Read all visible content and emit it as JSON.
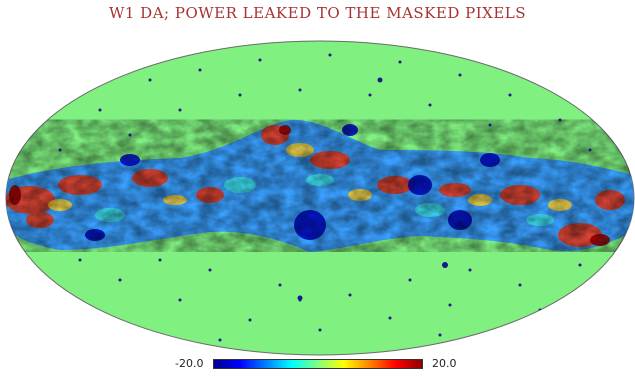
{
  "title": "W1 DA; POWER LEAKED TO THE MASKED PIXELS",
  "projection": "mollweide",
  "colorbar": {
    "min_label": "-20.0",
    "max_label": "20.0",
    "min": -20.0,
    "max": 20.0,
    "colormap": "jet"
  },
  "colors": {
    "masked_zero": "#80f080",
    "title": "#a83232",
    "low": "#00008f",
    "high": "#8f0000"
  }
}
